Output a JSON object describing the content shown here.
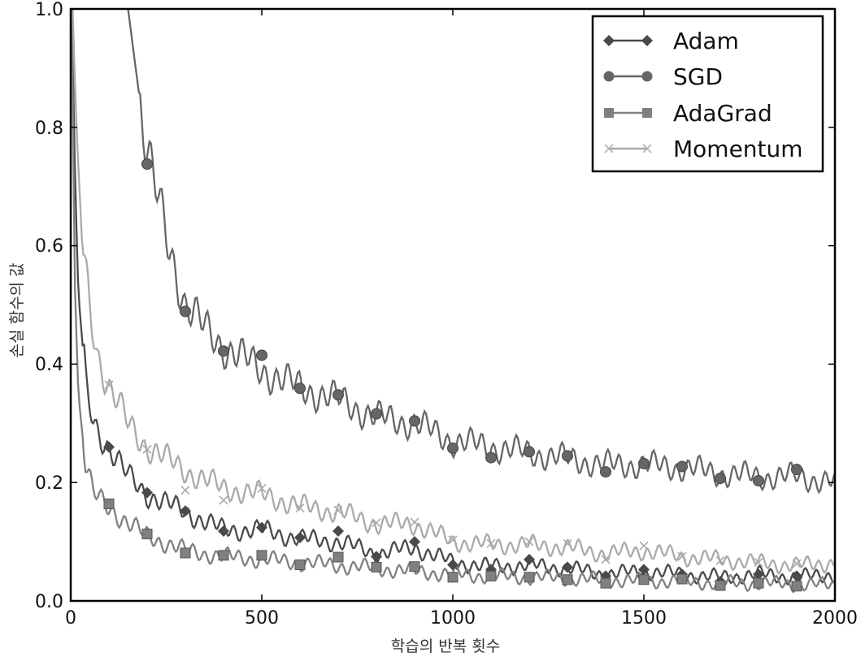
{
  "chart_data": {
    "type": "line",
    "xlabel": "학습의 반복 횟수",
    "ylabel": "손실 함수의 값",
    "xlim": [
      0,
      2000
    ],
    "ylim": [
      0.0,
      1.0
    ],
    "x_ticks": [
      "0",
      "500",
      "1000",
      "1500",
      "2000"
    ],
    "y_ticks": [
      "0.0",
      "0.2",
      "0.4",
      "0.6",
      "0.8",
      "1.0"
    ],
    "grid": false,
    "legend_position": "top-right",
    "marker_x": [
      100,
      200,
      300,
      400,
      500,
      600,
      700,
      800,
      900,
      1000,
      1100,
      1200,
      1300,
      1400,
      1500,
      1600,
      1700,
      1800,
      1900
    ],
    "series": [
      {
        "name": "Adam",
        "color": "#4a4a4a",
        "marker": "diamond",
        "curve": [
          [
            3,
            1.0
          ],
          [
            10,
            0.75
          ],
          [
            20,
            0.52
          ],
          [
            40,
            0.36
          ],
          [
            60,
            0.3
          ],
          [
            80,
            0.28
          ],
          [
            100,
            0.26
          ],
          [
            150,
            0.21
          ],
          [
            200,
            0.18
          ],
          [
            300,
            0.15
          ],
          [
            400,
            0.12
          ],
          [
            500,
            0.12
          ],
          [
            600,
            0.105
          ],
          [
            700,
            0.1
          ],
          [
            800,
            0.08
          ],
          [
            900,
            0.09
          ],
          [
            1000,
            0.065
          ],
          [
            1100,
            0.058
          ],
          [
            1200,
            0.06
          ],
          [
            1300,
            0.055
          ],
          [
            1400,
            0.045
          ],
          [
            1500,
            0.05
          ],
          [
            1600,
            0.045
          ],
          [
            1700,
            0.04
          ],
          [
            1800,
            0.045
          ],
          [
            1900,
            0.04
          ],
          [
            2000,
            0.045
          ]
        ],
        "markers": [
          0.26,
          0.183,
          0.152,
          0.118,
          0.124,
          0.107,
          0.118,
          0.075,
          0.1,
          0.061,
          0.053,
          0.07,
          0.057,
          0.042,
          0.053,
          0.045,
          0.033,
          0.045,
          0.042
        ]
      },
      {
        "name": "SGD",
        "color": "#666666",
        "marker": "circle",
        "curve": [
          [
            150,
            1.0
          ],
          [
            170,
            0.9
          ],
          [
            200,
            0.75
          ],
          [
            250,
            0.62
          ],
          [
            300,
            0.5
          ],
          [
            350,
            0.46
          ],
          [
            400,
            0.43
          ],
          [
            500,
            0.39
          ],
          [
            600,
            0.36
          ],
          [
            700,
            0.34
          ],
          [
            800,
            0.31
          ],
          [
            900,
            0.3
          ],
          [
            1000,
            0.27
          ],
          [
            1100,
            0.26
          ],
          [
            1200,
            0.25
          ],
          [
            1300,
            0.24
          ],
          [
            1400,
            0.23
          ],
          [
            1500,
            0.23
          ],
          [
            1600,
            0.225
          ],
          [
            1700,
            0.215
          ],
          [
            1800,
            0.21
          ],
          [
            1900,
            0.21
          ],
          [
            2000,
            0.2
          ]
        ],
        "markers": [
          null,
          0.738,
          0.489,
          0.422,
          0.415,
          0.359,
          0.348,
          0.316,
          0.304,
          0.258,
          0.242,
          0.252,
          0.245,
          0.218,
          0.232,
          0.227,
          0.207,
          0.203,
          0.222
        ]
      },
      {
        "name": "AdaGrad",
        "color": "#808080",
        "marker": "square",
        "curve": [
          [
            3,
            1.0
          ],
          [
            10,
            0.55
          ],
          [
            20,
            0.35
          ],
          [
            40,
            0.22
          ],
          [
            60,
            0.18
          ],
          [
            80,
            0.17
          ],
          [
            100,
            0.16
          ],
          [
            150,
            0.13
          ],
          [
            200,
            0.11
          ],
          [
            300,
            0.085
          ],
          [
            400,
            0.075
          ],
          [
            500,
            0.07
          ],
          [
            600,
            0.065
          ],
          [
            700,
            0.06
          ],
          [
            800,
            0.055
          ],
          [
            900,
            0.05
          ],
          [
            1000,
            0.045
          ],
          [
            1100,
            0.042
          ],
          [
            1200,
            0.04
          ],
          [
            1300,
            0.038
          ],
          [
            1400,
            0.035
          ],
          [
            1500,
            0.034
          ],
          [
            1600,
            0.033
          ],
          [
            1700,
            0.03
          ],
          [
            1800,
            0.03
          ],
          [
            1900,
            0.028
          ],
          [
            2000,
            0.027
          ]
        ],
        "markers": [
          0.164,
          0.113,
          0.081,
          0.077,
          0.077,
          0.061,
          0.074,
          0.057,
          0.058,
          0.04,
          0.042,
          0.04,
          0.036,
          0.03,
          0.036,
          0.037,
          0.026,
          0.03,
          0.025
        ]
      },
      {
        "name": "Momentum",
        "color": "#aaaaaa",
        "marker": "x",
        "curve": [
          [
            5,
            1.0
          ],
          [
            15,
            0.8
          ],
          [
            30,
            0.6
          ],
          [
            50,
            0.5
          ],
          [
            70,
            0.42
          ],
          [
            100,
            0.36
          ],
          [
            150,
            0.3
          ],
          [
            200,
            0.26
          ],
          [
            300,
            0.22
          ],
          [
            400,
            0.19
          ],
          [
            500,
            0.18
          ],
          [
            600,
            0.16
          ],
          [
            700,
            0.15
          ],
          [
            800,
            0.13
          ],
          [
            900,
            0.13
          ],
          [
            1000,
            0.1
          ],
          [
            1100,
            0.095
          ],
          [
            1200,
            0.095
          ],
          [
            1300,
            0.09
          ],
          [
            1400,
            0.08
          ],
          [
            1500,
            0.085
          ],
          [
            1600,
            0.075
          ],
          [
            1700,
            0.07
          ],
          [
            1800,
            0.065
          ],
          [
            1900,
            0.06
          ],
          [
            2000,
            0.065
          ]
        ],
        "markers": [
          0.365,
          0.256,
          0.187,
          0.17,
          0.19,
          0.157,
          0.153,
          0.132,
          0.133,
          0.103,
          0.097,
          0.1,
          0.097,
          0.07,
          0.093,
          0.075,
          0.068,
          0.065,
          0.063
        ]
      }
    ]
  }
}
